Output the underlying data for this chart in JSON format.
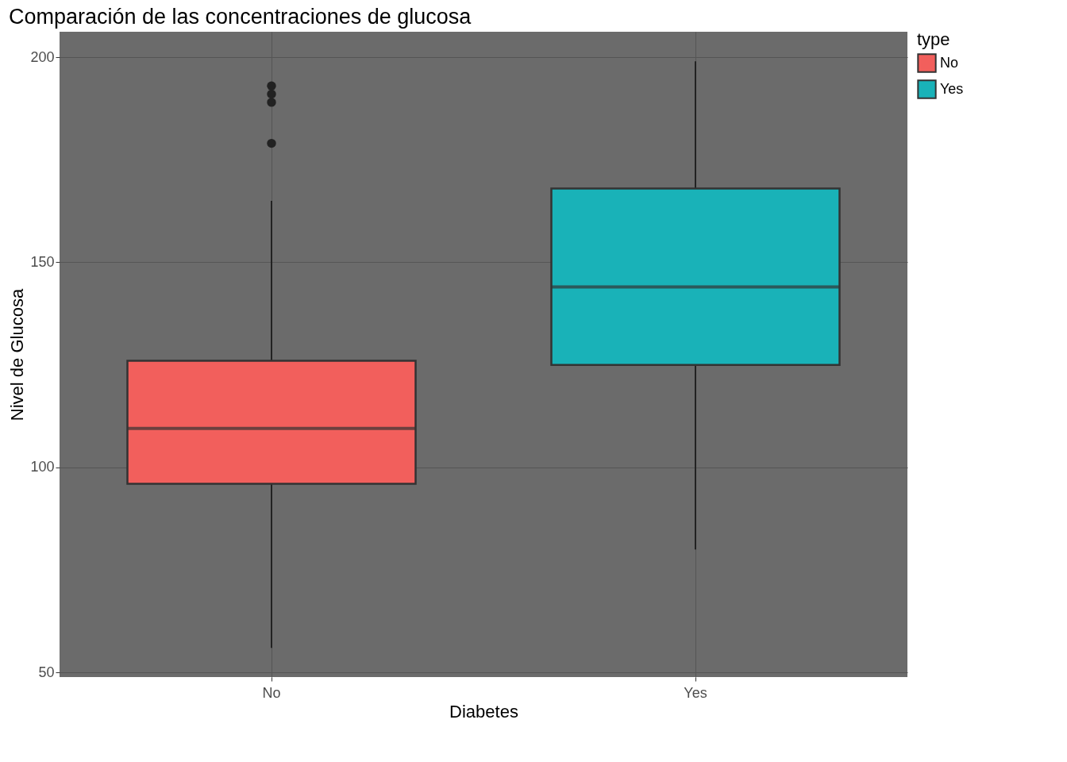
{
  "chart_data": {
    "type": "box",
    "title": "Comparación de las concentraciones de glucosa",
    "xlabel": "Diabetes",
    "ylabel": "Nivel de Glucosa",
    "legend_title": "type",
    "legend": "right",
    "categories": [
      "No",
      "Yes"
    ],
    "series": [
      {
        "name": "No",
        "color": "#f25f5c",
        "boxes": [
          {
            "low": 56,
            "q1": 96,
            "median": 109.5,
            "q3": 126,
            "high": 165,
            "outliers": [
              179,
              189,
              191,
              193
            ]
          },
          null
        ]
      },
      {
        "name": "Yes",
        "color": "#19b2b8",
        "boxes": [
          null,
          {
            "low": 80,
            "q1": 125,
            "median": 144,
            "q3": 168,
            "high": 199
          }
        ]
      }
    ],
    "ylim": [
      48.9,
      206.2
    ],
    "yticks": [
      50,
      100,
      150,
      200
    ],
    "grid": true
  }
}
